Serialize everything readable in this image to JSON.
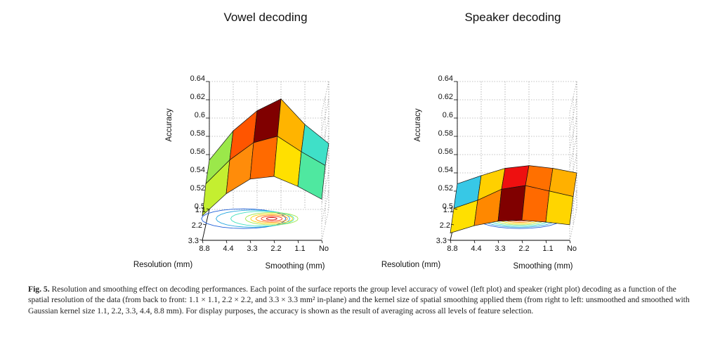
{
  "figure": {
    "caption_label": "Fig. 5.",
    "caption_text": "Resolution and smoothing effect on decoding performances. Each point of the surface reports the group level accuracy of vowel (left plot) and speaker (right plot) decoding as a function of the spatial resolution of the data (from back to front: 1.1 × 1.1, 2.2 × 2.2, and 3.3 × 3.3 mm² in-plane) and the kernel size of spatial smoothing applied them (from right to left: unsmoothed and smoothed with Gaussian kernel size 1.1, 2.2, 3.3, 4.4, 8.8 mm). For display purposes, the accuracy is shown as the result of averaging across all levels of feature selection."
  },
  "chart_data": [
    {
      "type": "surface3d",
      "title": "Vowel decoding",
      "zlabel": "Accuracy",
      "xlabel": "Smoothing (mm)",
      "ylabel": "Resolution (mm)",
      "zlim": [
        0.5,
        0.64
      ],
      "z_ticks": [
        "0.64",
        "0.62",
        "0.6",
        "0.58",
        "0.56",
        "0.54",
        "0.52",
        "0.5"
      ],
      "x_ticks": [
        "8.8",
        "4.4",
        "3.3",
        "2.2",
        "1.1",
        "No"
      ],
      "y_ticks": [
        "1.1",
        "2.2",
        "3.3"
      ],
      "smoothing_levels": [
        "8.8",
        "4.4",
        "3.3",
        "2.2",
        "1.1",
        "No"
      ],
      "resolution_levels": [
        "1.1",
        "2.2",
        "3.3"
      ],
      "accuracy": [
        [
          0.554,
          0.586,
          0.608,
          0.621,
          0.593,
          0.572
        ],
        [
          0.545,
          0.571,
          0.59,
          0.597,
          0.58,
          0.565
        ],
        [
          0.527,
          0.551,
          0.567,
          0.57,
          0.559,
          0.545
        ]
      ],
      "cell_colors": [
        [
          "#9be84a",
          "#ff5500",
          "#800000",
          "#ffb400",
          "#3fe0c8"
        ],
        [
          "#c4ef30",
          "#ff8c0a",
          "#ff6a00",
          "#ffe000",
          "#4fe8a0"
        ]
      ]
    },
    {
      "type": "surface3d",
      "title": "Speaker decoding",
      "zlabel": "Accuracy",
      "xlabel": "Smoothing (mm)",
      "ylabel": "Resolution (mm)",
      "zlim": [
        0.5,
        0.64
      ],
      "z_ticks": [
        "0.64",
        "0.62",
        "0.6",
        "0.58",
        "0.56",
        "0.54",
        "0.52",
        "0.5"
      ],
      "x_ticks": [
        "8.8",
        "4.4",
        "3.3",
        "2.2",
        "1.1",
        "No"
      ],
      "y_ticks": [
        "1.1",
        "2.2",
        "3.3"
      ],
      "smoothing_levels": [
        "8.8",
        "4.4",
        "3.3",
        "2.2",
        "1.1",
        "No"
      ],
      "resolution_levels": [
        "1.1",
        "2.2",
        "3.3"
      ],
      "accuracy": [
        [
          0.528,
          0.537,
          0.545,
          0.548,
          0.545,
          0.54
        ],
        [
          0.518,
          0.527,
          0.539,
          0.543,
          0.537,
          0.531
        ],
        [
          0.508,
          0.516,
          0.521,
          0.522,
          0.52,
          0.517
        ]
      ],
      "cell_colors": [
        [
          "#37c8e6",
          "#ffd000",
          "#ee1010",
          "#ff7000",
          "#ffb000"
        ],
        [
          "#ffe000",
          "#ff8800",
          "#800000",
          "#ff6a00",
          "#ffd500"
        ]
      ]
    }
  ]
}
